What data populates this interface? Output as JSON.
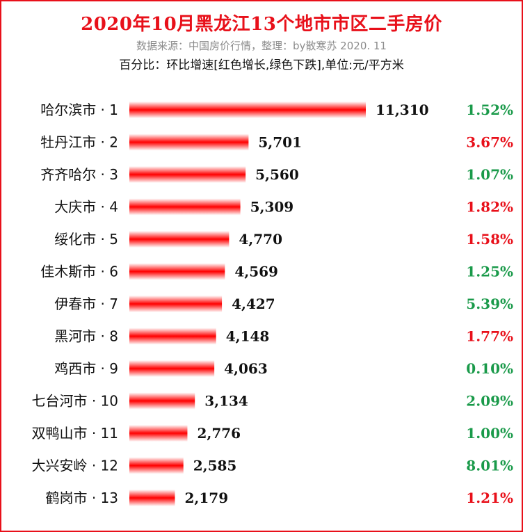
{
  "header": {
    "title": "2020年10月黑龙江13个地市市区二手房价",
    "source": "数据来源：中国房价行情，整理：by散寒苏  2020. 11",
    "note": "百分比：环比增速[红色增长,绿色下跌],单位:元/平方米"
  },
  "colors": {
    "bar": "#ff0000",
    "bar_edge": "#ffffff",
    "increase": "#e8101a",
    "decrease": "#1a9a4a",
    "title": "#e8101a",
    "frame": "#e8101a"
  },
  "chart_data": {
    "type": "bar",
    "orientation": "horizontal",
    "categories": [
      "哈尔滨市 · 1",
      "牡丹江市 · 2",
      "齐齐哈尔 · 3",
      "大庆市 · 4",
      "绥化市 · 5",
      "佳木斯市 · 6",
      "伊春市 · 7",
      "黑河市 · 8",
      "鸡西市 · 9",
      "七台河市 · 10",
      "双鸭山市 · 11",
      "大兴安岭 · 12",
      "鹤岗市 · 13"
    ],
    "values": [
      11310,
      5701,
      5560,
      5309,
      4770,
      4569,
      4427,
      4148,
      4063,
      3134,
      2776,
      2585,
      2179
    ],
    "value_labels": [
      "11,310",
      "5,701",
      "5,560",
      "5,309",
      "4,770",
      "4,569",
      "4,427",
      "4,148",
      "4,063",
      "3,134",
      "2,776",
      "2,585",
      "2,179"
    ],
    "mom_change_labels": [
      "1.52%",
      "3.67%",
      "1.07%",
      "1.82%",
      "1.58%",
      "1.25%",
      "5.39%",
      "1.77%",
      "0.10%",
      "2.09%",
      "1.00%",
      "8.01%",
      "1.21%"
    ],
    "mom_direction": [
      "down",
      "up",
      "down",
      "up",
      "up",
      "down",
      "down",
      "up",
      "down",
      "down",
      "down",
      "down",
      "up"
    ],
    "xlim": [
      0,
      11310
    ],
    "grid": false,
    "legend": "none"
  }
}
